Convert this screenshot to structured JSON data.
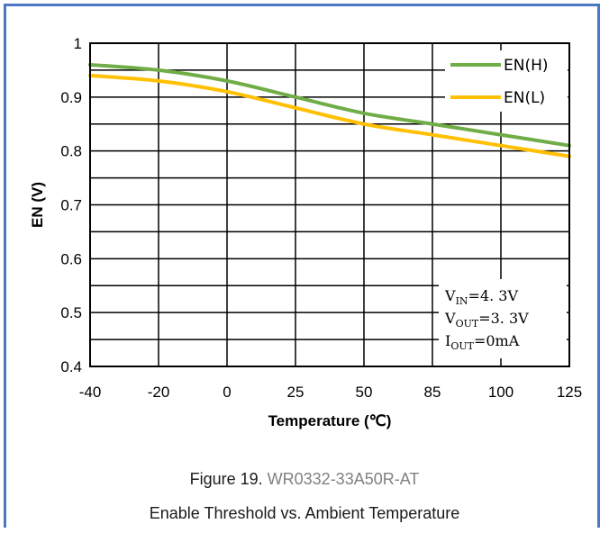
{
  "chart_data": {
    "type": "line",
    "categories": [
      "-40",
      "-20",
      "0",
      "25",
      "50",
      "85",
      "100",
      "125"
    ],
    "series": [
      {
        "name": "EN(H)",
        "color": "#70ad47",
        "values": [
          0.96,
          0.95,
          0.93,
          0.9,
          0.87,
          0.85,
          0.83,
          0.81
        ]
      },
      {
        "name": "EN(L)",
        "color": "#ffc000",
        "values": [
          0.94,
          0.93,
          0.91,
          0.88,
          0.85,
          0.83,
          0.81,
          0.79
        ]
      }
    ],
    "xlabel": "Temperature (℃)",
    "ylabel": "EN (V)",
    "ylim": [
      0.4,
      1.0
    ],
    "yticks": [
      "0.4",
      "0.5",
      "0.6",
      "0.7",
      "0.8",
      "0.9",
      "1"
    ],
    "grid": true,
    "legend": "top-right",
    "conditions": [
      {
        "prefix": "V",
        "sub": "IN",
        "value": "=4. 3V"
      },
      {
        "prefix": "V",
        "sub": "OUT",
        "value": "=3. 3V"
      },
      {
        "prefix": "I",
        "sub": "OUT",
        "value": "=0mA"
      }
    ]
  },
  "caption": {
    "figure_label": "Figure 19. ",
    "part_number": "WR0332-33A50R-AT",
    "subtitle": "Enable Threshold vs. Ambient Temperature"
  }
}
